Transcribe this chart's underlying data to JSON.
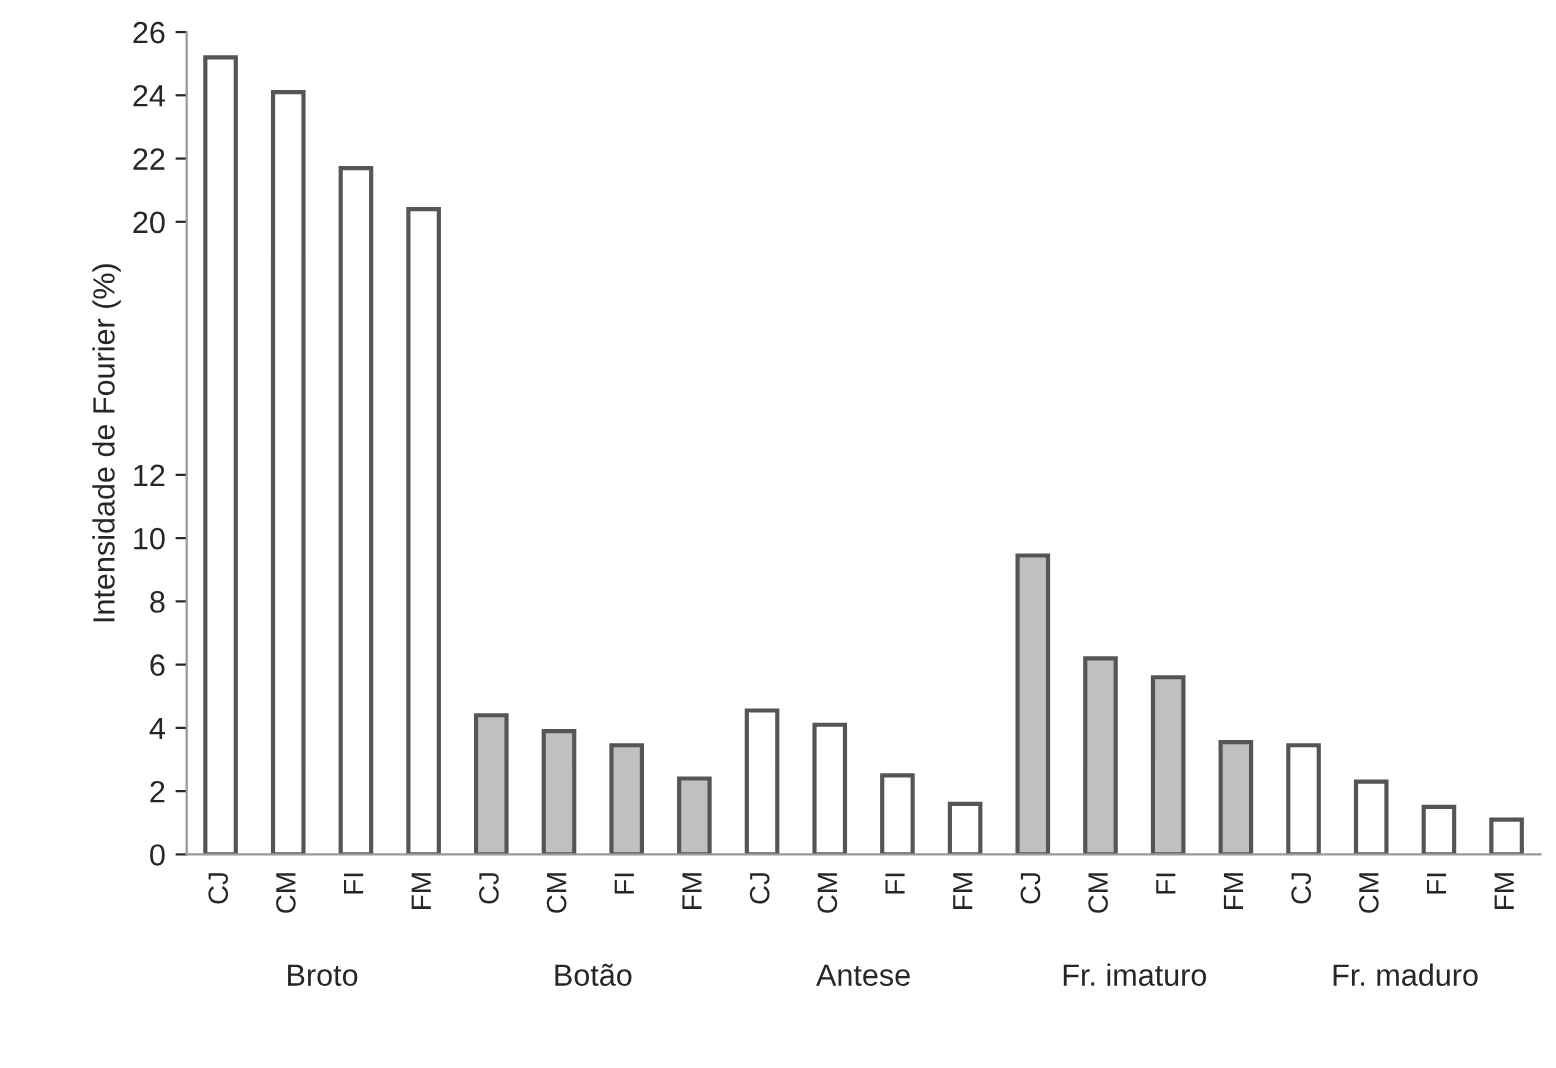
{
  "chart_data": {
    "type": "bar",
    "ylabel": "Intensidade de Fourier (%)",
    "categories": [
      "CJ",
      "CM",
      "FI",
      "FM",
      "CJ",
      "CM",
      "FI",
      "FM",
      "CJ",
      "CM",
      "FI",
      "FM",
      "CJ",
      "CM",
      "FI",
      "FM",
      "CJ",
      "CM",
      "FI",
      "FM"
    ],
    "values": [
      25.2,
      24.1,
      21.7,
      20.4,
      4.4,
      3.9,
      3.45,
      2.4,
      4.55,
      4.1,
      2.5,
      1.6,
      9.45,
      6.2,
      5.6,
      3.55,
      3.45,
      2.3,
      1.5,
      1.1
    ],
    "colors": [
      "#ffffff",
      "#ffffff",
      "#ffffff",
      "#ffffff",
      "#c0c0c0",
      "#c0c0c0",
      "#c0c0c0",
      "#c0c0c0",
      "#ffffff",
      "#ffffff",
      "#ffffff",
      "#ffffff",
      "#c0c0c0",
      "#c0c0c0",
      "#c0c0c0",
      "#c0c0c0",
      "#ffffff",
      "#ffffff",
      "#ffffff",
      "#ffffff"
    ],
    "annotations": [
      "Broto",
      "Botão",
      "Antese",
      "Fr. imaturo",
      "Fr. maduro"
    ],
    "ylim": [
      0,
      26
    ],
    "yticks": [
      0,
      2,
      4,
      6,
      8,
      10,
      12,
      20,
      22,
      24,
      26
    ],
    "grid": false,
    "legend": false
  }
}
